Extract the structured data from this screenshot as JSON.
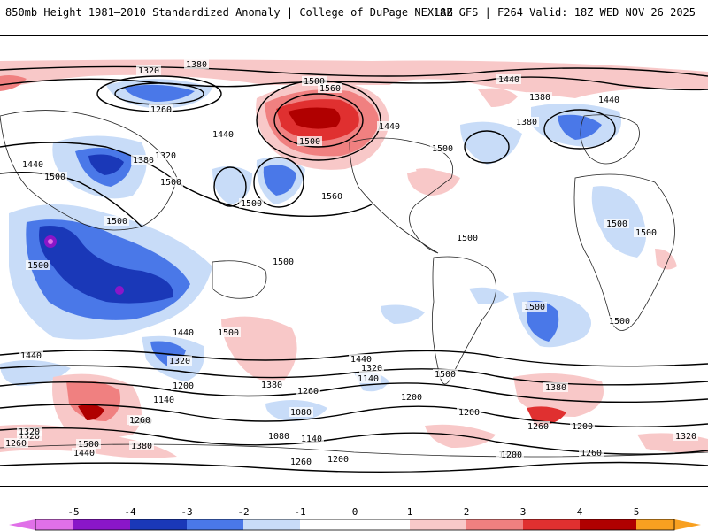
{
  "header": {
    "title_left": "850mb Height 1981–2010 Standardized Anomaly | College of DuPage NEXLAB",
    "title_right": "18Z GFS | F264 Valid: 18Z WED NOV 26 2025"
  },
  "colors": {
    "neg5": "#e070e8",
    "neg4": "#8a16c8",
    "neg3": "#1a38b8",
    "neg2": "#4a78e8",
    "neg1": "#c8dcf8",
    "zero": "#ffffff",
    "pos1": "#f8c8c8",
    "pos2": "#f08080",
    "pos3": "#e03030",
    "pos4": "#b00000",
    "pos5": "#f8a020"
  },
  "legend": {
    "ticks": [
      "-5",
      "-4",
      "-3",
      "-2",
      "-1",
      "0",
      "1",
      "2",
      "3",
      "4",
      "5"
    ]
  },
  "contour_labels": [
    "1380",
    "1320",
    "1260",
    "1500",
    "1560",
    "1440",
    "1380",
    "1440",
    "1440",
    "1380",
    "1500",
    "1440",
    "1500",
    "1380",
    "1320",
    "1500",
    "1440",
    "1500",
    "1500",
    "1500",
    "1500",
    "1560",
    "1500",
    "1500",
    "1500",
    "1500",
    "1500",
    "1500",
    "1500",
    "1440",
    "1440",
    "1320",
    "1440",
    "1320",
    "1140",
    "1200",
    "1380",
    "1260",
    "1200",
    "1140",
    "1080",
    "1440",
    "1320",
    "1260",
    "1500",
    "1440",
    "1380",
    "1320",
    "1260",
    "1500",
    "1200",
    "1080",
    "1140",
    "1260",
    "1200",
    "1320",
    "1380",
    "1260",
    "1200",
    "1200",
    "1260",
    "1320"
  ]
}
